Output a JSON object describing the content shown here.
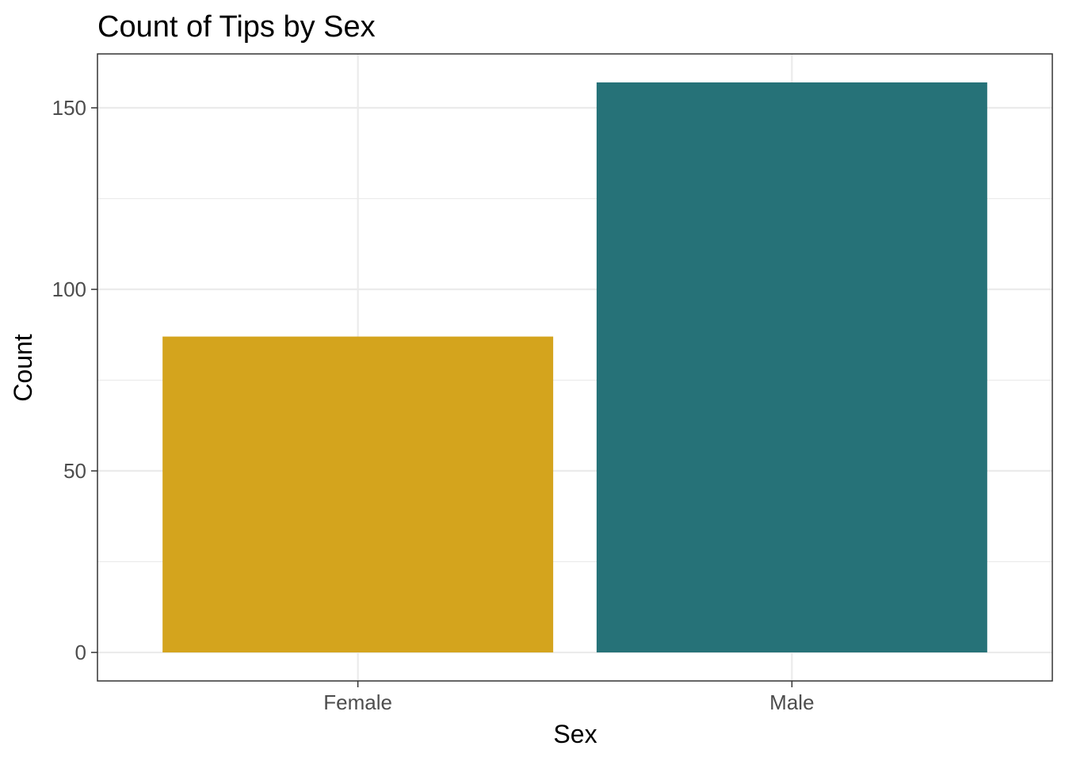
{
  "chart_data": {
    "type": "bar",
    "title": "Count of Tips by Sex",
    "xlabel": "Sex",
    "ylabel": "Count",
    "categories": [
      "Female",
      "Male"
    ],
    "values": [
      87,
      157
    ],
    "colors": [
      "#D4A41D",
      "#267278"
    ],
    "ylim": [
      -7.85,
      164.85
    ],
    "yticks": [
      0,
      50,
      100,
      150
    ],
    "ytick_labels": [
      "0",
      "50",
      "100",
      "150"
    ],
    "grid": true,
    "legend": "none"
  }
}
